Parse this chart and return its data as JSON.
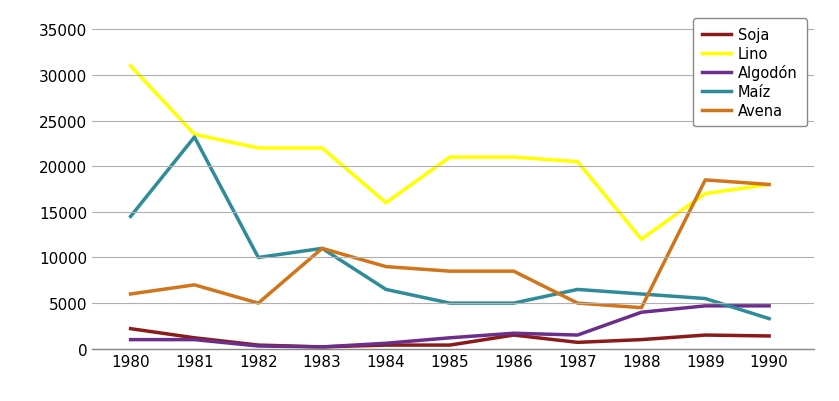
{
  "years": [
    1980,
    1981,
    1982,
    1983,
    1984,
    1985,
    1986,
    1987,
    1988,
    1989,
    1990
  ],
  "series": {
    "Soja": [
      2200,
      1200,
      400,
      200,
      400,
      400,
      1500,
      700,
      1000,
      1500,
      1400
    ],
    "Lino": [
      31000,
      23500,
      22000,
      22000,
      16000,
      21000,
      21000,
      20500,
      12000,
      17000,
      18000
    ],
    "Algodón": [
      1000,
      1000,
      300,
      200,
      600,
      1200,
      1700,
      1500,
      4000,
      4700,
      4700
    ],
    "Maíz": [
      14500,
      23200,
      10000,
      11000,
      6500,
      5000,
      5000,
      6500,
      6000,
      5500,
      3300
    ],
    "Avena": [
      6000,
      7000,
      5000,
      11000,
      9000,
      8500,
      8500,
      5000,
      4500,
      18500,
      18000
    ]
  },
  "colors": {
    "Soja": "#8B1A1A",
    "Lino": "#FFFF00",
    "Algodón": "#6B2E8B",
    "Maíz": "#2E8B9A",
    "Avena": "#D2741A"
  },
  "ylim": [
    0,
    37000
  ],
  "yticks": [
    0,
    5000,
    10000,
    15000,
    20000,
    25000,
    30000,
    35000
  ],
  "background_color": "#FFFFFF",
  "grid_color": "#B0B0B0",
  "legend_border_color": "#888888",
  "tick_fontsize": 11,
  "line_width": 2.5
}
